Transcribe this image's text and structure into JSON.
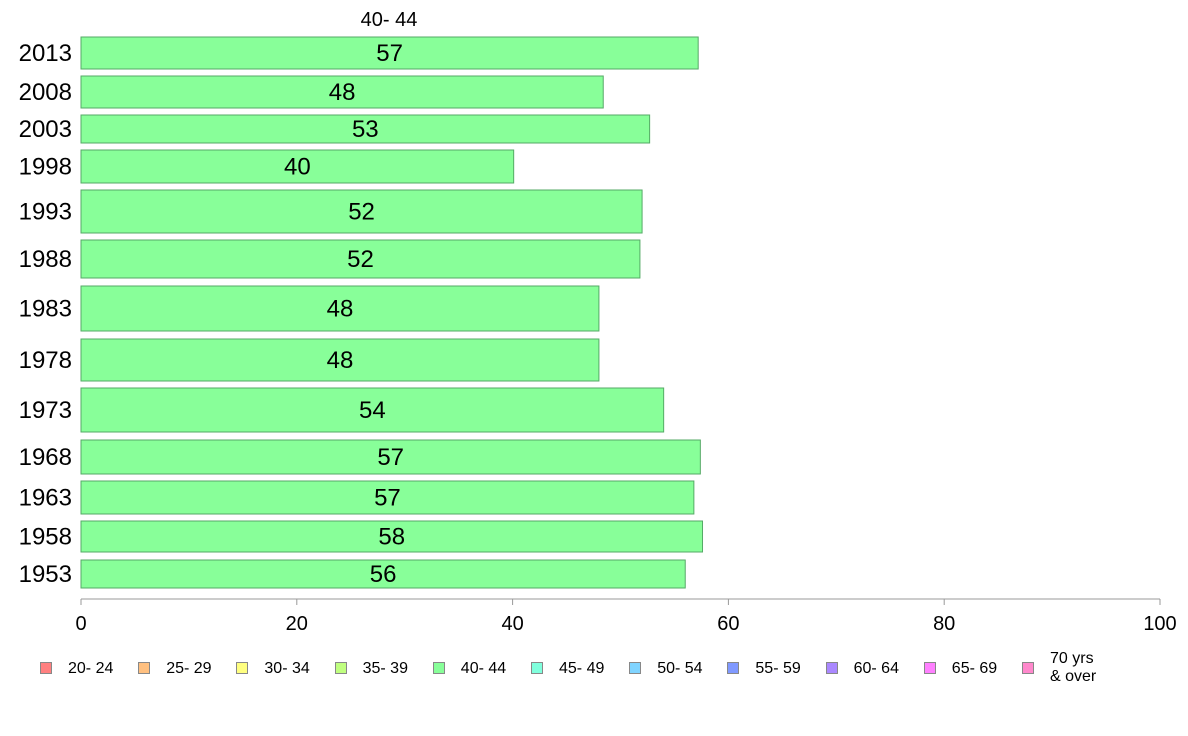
{
  "chart_data": {
    "type": "bar",
    "orientation": "horizontal",
    "title": "40- 44",
    "categories": [
      "2013",
      "2008",
      "2003",
      "1998",
      "1993",
      "1988",
      "1983",
      "1978",
      "1973",
      "1968",
      "1963",
      "1958",
      "1953"
    ],
    "values": [
      57.2,
      48.4,
      52.7,
      40.1,
      52.0,
      51.8,
      48.0,
      48.0,
      54.0,
      57.4,
      56.8,
      57.6,
      56.0
    ],
    "data_labels": [
      "57",
      "48",
      "53",
      "40",
      "52",
      "52",
      "48",
      "48",
      "54",
      "57",
      "57",
      "58",
      "56"
    ],
    "xlim": [
      0,
      100
    ],
    "xticks": [
      "0",
      "20",
      "40",
      "60",
      "80",
      "100"
    ],
    "bar_color": "#88ff99",
    "bar_edge_color": "#55aa66",
    "grid": false,
    "legend": {
      "position": "bottom",
      "entries": [
        {
          "label": "20- 24",
          "color": "#ff8080"
        },
        {
          "label": "25- 29",
          "color": "#ffc080"
        },
        {
          "label": "30- 34",
          "color": "#ffff80"
        },
        {
          "label": "35- 39",
          "color": "#c0ff80"
        },
        {
          "label": "40- 44",
          "color": "#88ff99"
        },
        {
          "label": "45- 49",
          "color": "#80ffdd"
        },
        {
          "label": "50- 54",
          "color": "#80d4ff"
        },
        {
          "label": "55- 59",
          "color": "#8099ff"
        },
        {
          "label": "60- 64",
          "color": "#aa88ff"
        },
        {
          "label": "65- 69",
          "color": "#ff80ff"
        },
        {
          "label": "70 yrs\n& over",
          "color": "#ff88cc"
        }
      ]
    }
  }
}
